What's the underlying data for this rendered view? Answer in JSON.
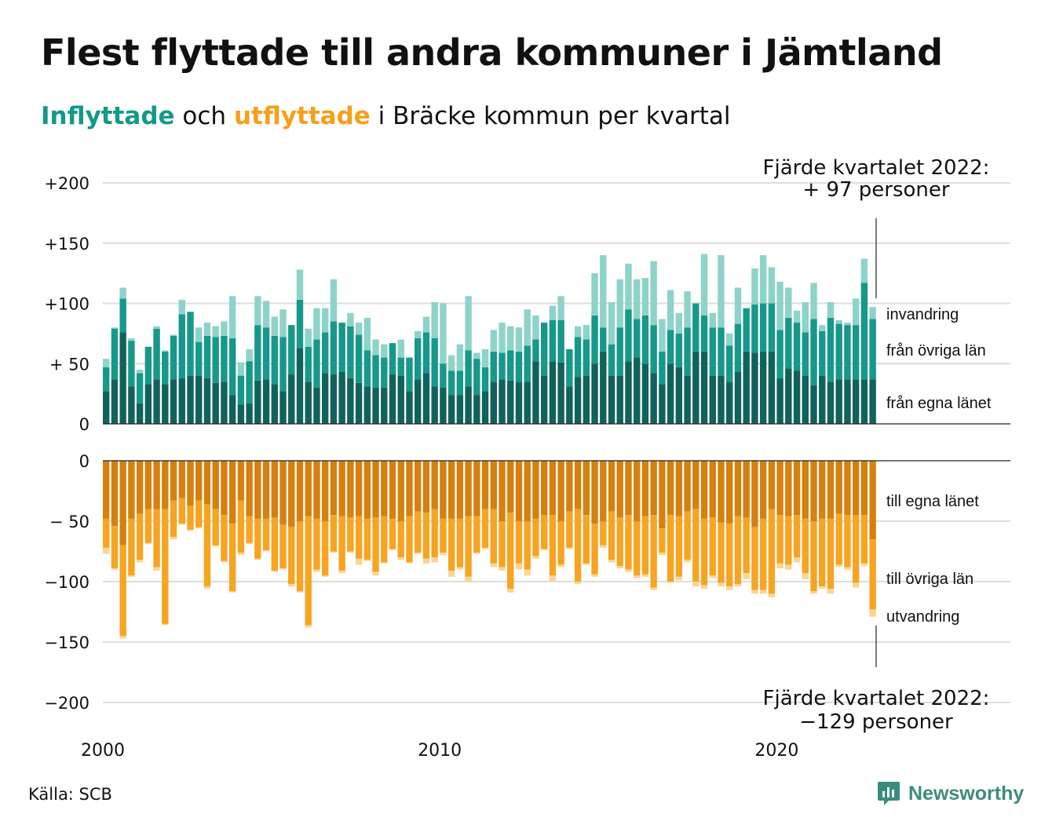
{
  "title": "Flest flyttade till andra kommuner i Jämtland",
  "subtitle": {
    "in_word": "Inflyttade",
    "mid_word": " och ",
    "out_word": "utflyttade",
    "rest": " i Bräcke kommun per kvartal"
  },
  "source": "Källa: SCB",
  "brand": "Newsworthy",
  "colors": {
    "in_local": "#10625b",
    "in_other": "#16988a",
    "in_immig": "#8ed3c9",
    "out_local": "#d6800f",
    "out_other": "#f7a422",
    "out_emig": "#fbd594",
    "grid": "#dddddd",
    "axis": "#222222"
  },
  "chart_data": {
    "type": "bar",
    "stacked": true,
    "diverging": true,
    "x_ticks": [
      "2000",
      "2010",
      "2020"
    ],
    "y_ticks_top": [
      "+200",
      "+150",
      "+100",
      "+ 50",
      "0"
    ],
    "y_ticks_bottom": [
      "0",
      "− 50",
      "−100",
      "−150",
      "−200"
    ],
    "ylim_top": [
      0,
      200
    ],
    "ylim_bottom": [
      -200,
      0
    ],
    "first_quarter": "2000 Q1",
    "last_quarter": "2022 Q4",
    "segment_labels_in": [
      "invandring",
      "från övriga län",
      "från egna länet"
    ],
    "segment_labels_out": [
      "till egna länet",
      "till övriga län",
      "utvandring"
    ],
    "annotation_top": {
      "line1": "Fjärde kvartalet 2022:",
      "line2": "+ 97 personer"
    },
    "annotation_bottom": {
      "line1": "Fjärde kvartalet 2022:",
      "line2": "−129 personer"
    },
    "series": [
      {
        "name": "från egna länet",
        "group": "in",
        "values": [
          27,
          37,
          76,
          31,
          17,
          33,
          37,
          33,
          37,
          38,
          40,
          40,
          38,
          34,
          35,
          24,
          16,
          17,
          36,
          37,
          33,
          27,
          41,
          63,
          35,
          30,
          42,
          41,
          43,
          38,
          34,
          31,
          30,
          30,
          41,
          40,
          27,
          37,
          42,
          31,
          30,
          24,
          24,
          31,
          24,
          27,
          35,
          37,
          36,
          35,
          35,
          52,
          40,
          52,
          51,
          31,
          39,
          40,
          50,
          60,
          40,
          40,
          52,
          55,
          50,
          42,
          33,
          50,
          47,
          40,
          60,
          60,
          40,
          40,
          35,
          43,
          60,
          59,
          60,
          60,
          38,
          46,
          44,
          40,
          32,
          40,
          35,
          37,
          37,
          37,
          37,
          37
        ]
      },
      {
        "name": "från övriga län",
        "group": "in",
        "values": [
          20,
          42,
          28,
          38,
          25,
          31,
          42,
          27,
          36,
          53,
          53,
          28,
          35,
          38,
          38,
          47,
          24,
          35,
          46,
          43,
          40,
          45,
          41,
          40,
          29,
          40,
          34,
          44,
          41,
          43,
          40,
          30,
          27,
          25,
          26,
          15,
          28,
          34,
          34,
          40,
          20,
          20,
          20,
          30,
          30,
          20,
          25,
          22,
          25,
          25,
          30,
          18,
          44,
          34,
          35,
          31,
          33,
          30,
          40,
          20,
          26,
          40,
          43,
          32,
          40,
          40,
          27,
          28,
          28,
          40,
          40,
          30,
          40,
          40,
          30,
          40,
          36,
          40,
          40,
          40,
          40,
          42,
          40,
          36,
          55,
          37,
          53,
          46,
          45,
          45,
          80,
          50
        ]
      },
      {
        "name": "invandring",
        "group": "in",
        "values": [
          7,
          1,
          9,
          2,
          3,
          0,
          2,
          1,
          1,
          12,
          0,
          12,
          11,
          9,
          12,
          35,
          11,
          10,
          24,
          22,
          16,
          23,
          0,
          25,
          15,
          26,
          20,
          35,
          0,
          11,
          10,
          27,
          13,
          11,
          0,
          15,
          0,
          6,
          13,
          30,
          50,
          13,
          22,
          45,
          5,
          15,
          18,
          25,
          20,
          20,
          30,
          20,
          0,
          12,
          20,
          0,
          9,
          12,
          35,
          60,
          35,
          40,
          38,
          33,
          31,
          53,
          27,
          33,
          17,
          30,
          0,
          51,
          12,
          60,
          10,
          30,
          0,
          30,
          40,
          30,
          40,
          25,
          10,
          25,
          30,
          5,
          13,
          3,
          2,
          22,
          20,
          10
        ]
      },
      {
        "name": "till egna länet",
        "group": "out",
        "values": [
          48,
          54,
          70,
          48,
          44,
          40,
          40,
          40,
          33,
          31,
          37,
          33,
          36,
          40,
          45,
          52,
          33,
          46,
          48,
          48,
          47,
          53,
          55,
          50,
          46,
          48,
          50,
          45,
          46,
          47,
          46,
          48,
          47,
          46,
          48,
          50,
          46,
          42,
          43,
          40,
          48,
          48,
          48,
          46,
          46,
          40,
          40,
          50,
          43,
          50,
          50,
          48,
          45,
          45,
          50,
          42,
          40,
          45,
          52,
          50,
          42,
          47,
          45,
          50,
          46,
          45,
          56,
          45,
          46,
          42,
          40,
          48,
          47,
          51,
          52,
          46,
          47,
          55,
          48,
          40,
          45,
          46,
          45,
          48,
          50,
          48,
          48,
          44,
          45,
          45,
          45,
          65
        ]
      },
      {
        "name": "till övriga län",
        "group": "out",
        "values": [
          24,
          35,
          75,
          47,
          38,
          28,
          48,
          95,
          30,
          21,
          20,
          22,
          68,
          30,
          38,
          56,
          43,
          22,
          33,
          26,
          44,
          36,
          47,
          58,
          90,
          42,
          45,
          30,
          45,
          28,
          35,
          34,
          45,
          38,
          25,
          30,
          38,
          34,
          38,
          40,
          28,
          43,
          40,
          50,
          30,
          32,
          45,
          38,
          63,
          35,
          40,
          31,
          28,
          50,
          36,
          30,
          60,
          40,
          42,
          20,
          40,
          40,
          45,
          45,
          48,
          60,
          20,
          55,
          50,
          40,
          60,
          55,
          48,
          50,
          52,
          56,
          46,
          52,
          59,
          70,
          40,
          40,
          35,
          45,
          58,
          56,
          58,
          42,
          43,
          56,
          40,
          58
        ]
      },
      {
        "name": "utvandring",
        "group": "out",
        "values": [
          5,
          1,
          2,
          1,
          2,
          1,
          3,
          1,
          2,
          1,
          1,
          1,
          2,
          1,
          1,
          1,
          2,
          1,
          1,
          1,
          1,
          1,
          2,
          1,
          2,
          2,
          1,
          1,
          2,
          1,
          5,
          1,
          3,
          1,
          1,
          2,
          1,
          1,
          4,
          4,
          2,
          5,
          2,
          4,
          1,
          1,
          3,
          3,
          3,
          5,
          5,
          2,
          1,
          5,
          2,
          1,
          2,
          1,
          2,
          2,
          2,
          2,
          2,
          2,
          2,
          2,
          2,
          1,
          3,
          2,
          4,
          3,
          2,
          3,
          3,
          2,
          5,
          3,
          3,
          3,
          4,
          4,
          4,
          5,
          2,
          2,
          4,
          2,
          2,
          4,
          2,
          6
        ]
      }
    ]
  }
}
